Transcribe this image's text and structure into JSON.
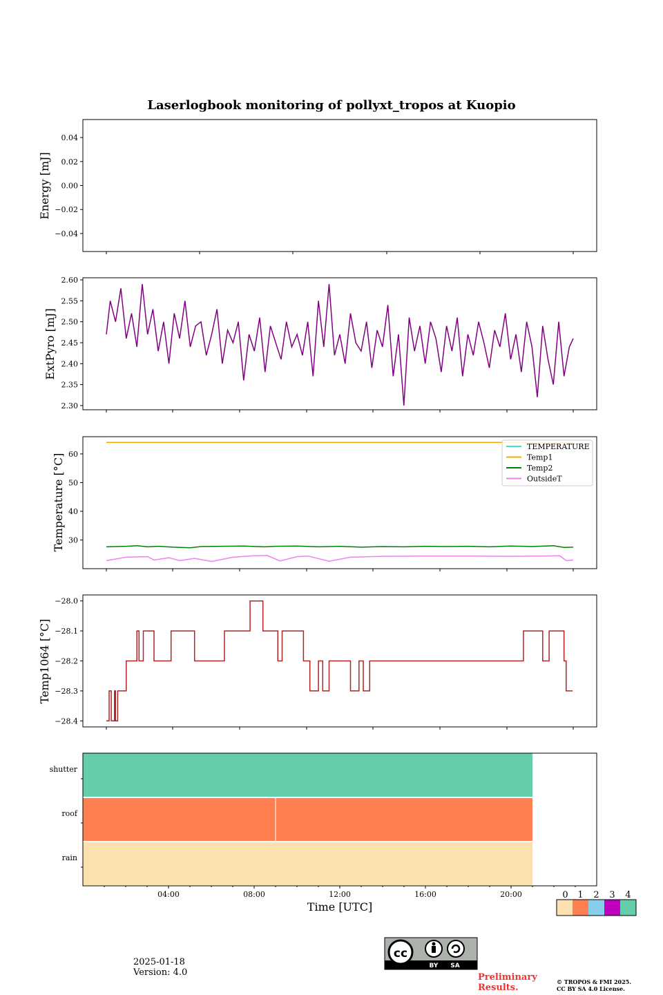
{
  "chart_data": [
    {
      "type": "line",
      "title": "Laserlogbook monitoring of pollyxt_tropos at Kuopio",
      "ylabel": "Energy [mJ]",
      "ylim": [
        -0.055,
        0.055
      ],
      "yticks": [
        "0.04",
        "0.02",
        "0.00",
        "−0.02",
        "−0.04"
      ],
      "ytick_values": [
        0.04,
        0.02,
        0.0,
        -0.02,
        -0.04
      ],
      "xlim": [
        0,
        24
      ],
      "series": []
    },
    {
      "type": "line",
      "ylabel": "ExtPyro [mJ]",
      "ylim": [
        2.29,
        2.605
      ],
      "yticks": [
        "2.60",
        "2.55",
        "2.50",
        "2.45",
        "2.40",
        "2.35",
        "2.30"
      ],
      "ytick_values": [
        2.6,
        2.55,
        2.5,
        2.45,
        2.4,
        2.35,
        2.3
      ],
      "xlim": [
        0,
        24
      ],
      "color": "#800080",
      "series": [
        {
          "x": [
            1.07,
            1.25,
            1.5,
            1.75,
            2.0,
            2.25,
            2.5,
            2.75,
            3.0,
            3.25,
            3.5,
            3.75,
            4.0,
            4.25,
            4.5,
            4.75,
            5.0,
            5.25,
            5.5,
            5.75,
            6.0,
            6.25,
            6.5,
            6.75,
            7.0,
            7.25,
            7.5,
            7.75,
            8.0,
            8.25,
            8.5,
            8.75,
            9.0,
            9.25,
            9.5,
            9.75,
            10.0,
            10.25,
            10.5,
            10.75,
            11.0,
            11.25,
            11.5,
            11.75,
            12.0,
            12.25,
            12.5,
            12.75,
            13.0,
            13.25,
            13.5,
            13.75,
            14.0,
            14.25,
            14.5,
            14.75,
            15.0,
            15.25,
            15.5,
            15.75,
            16.0,
            16.25,
            16.5,
            16.75,
            17.0,
            17.25,
            17.5,
            17.75,
            18.0,
            18.25,
            18.5,
            18.75,
            19.0,
            19.25,
            19.5,
            19.75,
            20.0,
            20.25,
            20.5,
            20.75,
            21.0,
            21.25,
            21.5,
            21.75,
            22.0,
            22.25,
            22.5,
            22.75,
            22.93
          ],
          "values": [
            2.47,
            2.55,
            2.5,
            2.58,
            2.46,
            2.52,
            2.44,
            2.59,
            2.47,
            2.53,
            2.43,
            2.5,
            2.4,
            2.52,
            2.46,
            2.55,
            2.44,
            2.49,
            2.5,
            2.42,
            2.47,
            2.53,
            2.4,
            2.48,
            2.45,
            2.5,
            2.36,
            2.47,
            2.43,
            2.51,
            2.38,
            2.49,
            2.45,
            2.41,
            2.5,
            2.44,
            2.47,
            2.42,
            2.5,
            2.37,
            2.55,
            2.44,
            2.59,
            2.42,
            2.47,
            2.4,
            2.52,
            2.45,
            2.43,
            2.5,
            2.39,
            2.48,
            2.44,
            2.54,
            2.37,
            2.47,
            2.3,
            2.51,
            2.43,
            2.49,
            2.4,
            2.5,
            2.46,
            2.38,
            2.49,
            2.43,
            2.51,
            2.37,
            2.47,
            2.42,
            2.5,
            2.45,
            2.39,
            2.48,
            2.44,
            2.52,
            2.41,
            2.47,
            2.38,
            2.5,
            2.44,
            2.32,
            2.49,
            2.41,
            2.35,
            2.5,
            2.37,
            2.44,
            2.46
          ]
        }
      ]
    },
    {
      "type": "line",
      "ylabel": "Temperature [°C]",
      "ylim": [
        20,
        66
      ],
      "yticks": [
        "60",
        "50",
        "40",
        "30"
      ],
      "ytick_values": [
        60,
        50,
        40,
        30
      ],
      "xlim": [
        0,
        24
      ],
      "legend_position": "top-right",
      "series": [
        {
          "name": "TEMPERATURE",
          "color": "#40e0d0",
          "x": [],
          "values": []
        },
        {
          "name": "Temp1",
          "color": "#ffa500",
          "x": [
            1.07,
            22.93
          ],
          "values": [
            64,
            64
          ]
        },
        {
          "name": "Temp2",
          "color": "#008000",
          "x": [
            1.07,
            2.0,
            2.5,
            3.0,
            3.5,
            4.2,
            5.0,
            5.5,
            6.5,
            7.5,
            8.5,
            9.0,
            10.0,
            11.0,
            12.0,
            13.0,
            14.0,
            15.0,
            16.0,
            17.0,
            18.0,
            19.0,
            20.0,
            21.0,
            22.0,
            22.5,
            22.93
          ],
          "values": [
            27.6,
            27.8,
            28.0,
            27.6,
            27.8,
            27.5,
            27.3,
            27.7,
            27.8,
            27.9,
            27.6,
            27.8,
            27.9,
            27.6,
            27.8,
            27.5,
            27.7,
            27.6,
            27.8,
            27.7,
            27.8,
            27.6,
            27.9,
            27.7,
            28.0,
            27.4,
            27.5
          ]
        },
        {
          "name": "OutsideT",
          "color": "#ee82ee",
          "x": [
            1.07,
            2.0,
            3.0,
            3.3,
            4.0,
            4.5,
            5.2,
            6.0,
            7.0,
            8.0,
            8.6,
            9.2,
            10.0,
            10.5,
            11.5,
            12.5,
            14.0,
            16.0,
            18.0,
            20.0,
            21.5,
            22.3,
            22.6,
            22.93
          ],
          "values": [
            22.8,
            24.0,
            24.2,
            23.0,
            23.8,
            22.8,
            23.6,
            22.5,
            24.0,
            24.5,
            24.6,
            22.7,
            24.2,
            24.4,
            22.6,
            24.0,
            24.3,
            24.4,
            24.4,
            24.3,
            24.4,
            24.5,
            22.8,
            23.0
          ]
        }
      ]
    },
    {
      "type": "line",
      "ylabel": "Temp1064 [°C]",
      "ylim": [
        -28.42,
        -27.98
      ],
      "yticks": [
        "−28.0",
        "−28.1",
        "−28.2",
        "−28.3",
        "−28.4"
      ],
      "ytick_values": [
        -28.0,
        -28.1,
        -28.2,
        -28.3,
        -28.4
      ],
      "xlim": [
        0,
        24
      ],
      "color": "#b22222",
      "series": [
        {
          "x": [
            1.07,
            1.2,
            1.3,
            1.45,
            1.5,
            1.6,
            1.7,
            2.0,
            2.5,
            2.6,
            2.8,
            3.1,
            3.3,
            4.1,
            4.4,
            4.6,
            5.0,
            5.2,
            6.5,
            6.6,
            7.6,
            7.8,
            8.2,
            8.4,
            9.1,
            9.3,
            9.5,
            10.2,
            10.3,
            10.6,
            11.0,
            11.2,
            11.5,
            12.0,
            12.5,
            12.9,
            13.1,
            13.4,
            14.0,
            14.6,
            16.0,
            18.0,
            19.0,
            20.5,
            20.6,
            21.5,
            21.8,
            22.0,
            22.5,
            22.6,
            22.9
          ],
          "values": [
            -28.4,
            -28.3,
            -28.4,
            -28.3,
            -28.4,
            -28.3,
            -28.3,
            -28.2,
            -28.1,
            -28.2,
            -28.1,
            -28.1,
            -28.2,
            -28.1,
            -28.1,
            -28.1,
            -28.1,
            -28.2,
            -28.2,
            -28.1,
            -28.1,
            -28.0,
            -28.0,
            -28.1,
            -28.2,
            -28.1,
            -28.1,
            -28.1,
            -28.2,
            -28.3,
            -28.2,
            -28.3,
            -28.2,
            -28.2,
            -28.3,
            -28.2,
            -28.3,
            -28.2,
            -28.2,
            -28.2,
            -28.2,
            -28.2,
            -28.2,
            -28.2,
            -28.1,
            -28.2,
            -28.1,
            -28.1,
            -28.2,
            -28.3,
            -28.3
          ]
        }
      ]
    },
    {
      "type": "heatmap",
      "xlabel": "Time [UTC]",
      "categories": [
        "shutter",
        "roof",
        "rain"
      ],
      "xticks": [
        "04:00",
        "08:00",
        "12:00",
        "16:00",
        "20:00"
      ],
      "xtick_values": [
        4,
        8,
        12,
        16,
        20
      ],
      "xlim": [
        0,
        24
      ],
      "rows": [
        {
          "label": "shutter",
          "start": 0,
          "end": 21,
          "flag": 4
        },
        {
          "label": "roof",
          "start": 0,
          "end": 21,
          "flag": 1,
          "split_at": 9
        },
        {
          "label": "rain",
          "start": 0,
          "end": 21,
          "flag": 0
        }
      ],
      "colorbar": {
        "labels": [
          "0",
          "1",
          "2",
          "3",
          "4"
        ],
        "colors": [
          "#fde0b0",
          "#ff7f50",
          "#87ceeb",
          "#c000c0",
          "#66cdaa"
        ]
      }
    }
  ],
  "footer": {
    "date": "2025-01-18",
    "version": "Version: 4.0",
    "preliminary_line1": "Preliminary",
    "preliminary_line2": "Results.",
    "copyright_line1": "© TROPOS & FMI 2025.",
    "copyright_line2": "CC BY SA 4.0 License.",
    "license_badge_left": "BY",
    "license_badge_right": "SA",
    "license_logo": "cc-by-sa-icon"
  }
}
